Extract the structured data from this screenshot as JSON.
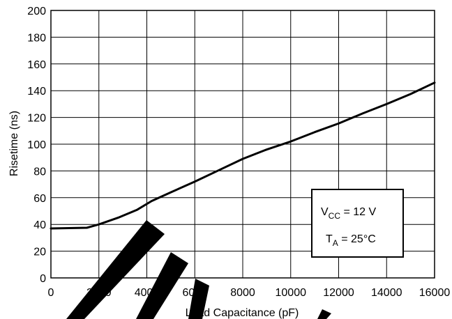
{
  "chart_data": {
    "type": "line",
    "title": "",
    "xlabel": "Load Capacitance (pF)",
    "ylabel": "Risetime (ns)",
    "xlim": [
      0,
      16000
    ],
    "ylim": [
      0,
      200
    ],
    "xticks": [
      0,
      2000,
      4000,
      6000,
      8000,
      10000,
      12000,
      14000,
      16000
    ],
    "yticks": [
      0,
      20,
      40,
      60,
      80,
      100,
      120,
      140,
      160,
      180,
      200
    ],
    "grid": true,
    "series": [
      {
        "x": [
          0,
          1500,
          2000,
          2800,
          3600,
          4200,
          5000,
          6000,
          7000,
          8000,
          9000,
          10000,
          11000,
          12000,
          13000,
          14000,
          15000,
          16000
        ],
        "y": [
          37,
          37.5,
          40,
          45,
          51,
          57.5,
          64,
          72,
          80.5,
          89,
          96,
          102,
          109,
          115.5,
          123,
          130,
          137.5,
          146
        ]
      }
    ],
    "annotation": {
      "line1_prefix": "V",
      "line1_sub": "CC",
      "line1_suffix": " = 12 V",
      "line2_prefix": "T",
      "line2_sub": "A",
      "line2_suffix": " = 25°C",
      "placement": "bottom-right"
    }
  }
}
